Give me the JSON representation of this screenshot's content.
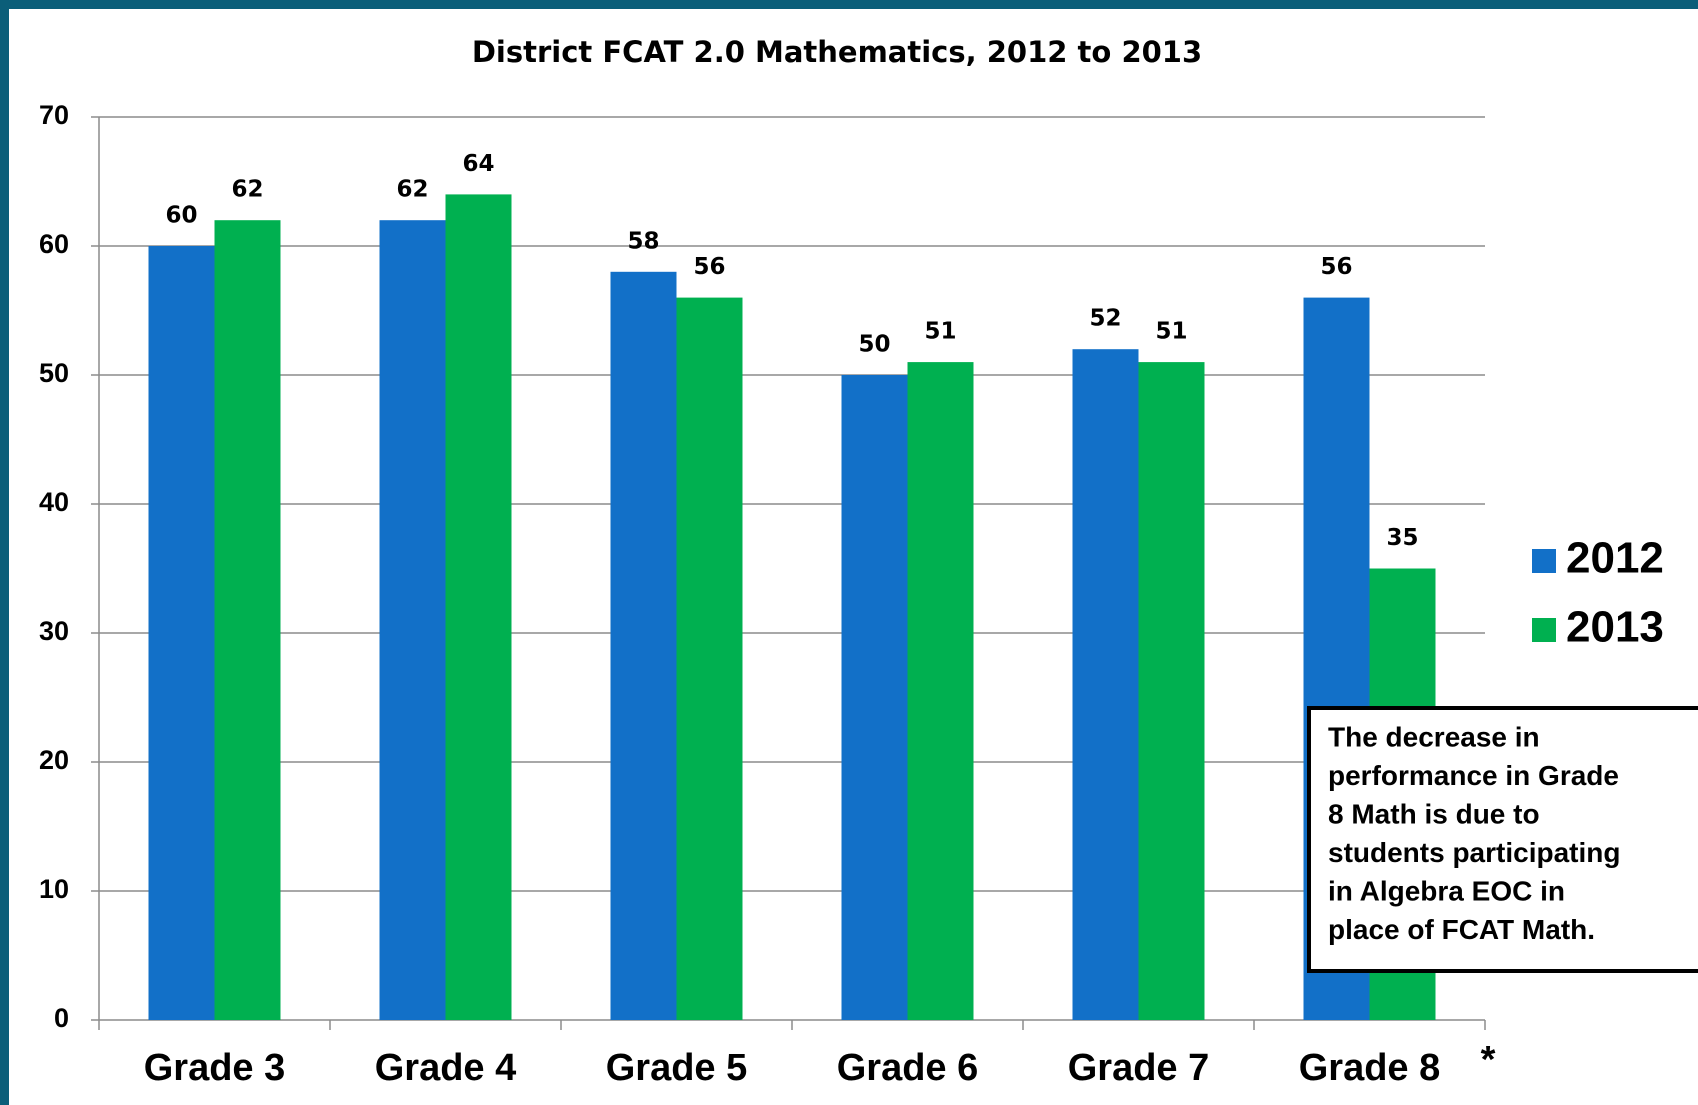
{
  "chart_data": {
    "type": "bar",
    "title": "District FCAT 2.0 Mathematics, 2012 to 2013",
    "categories": [
      "Grade 3",
      "Grade 4",
      "Grade 5",
      "Grade 6",
      "Grade 7",
      "Grade 8"
    ],
    "series": [
      {
        "name": "2012",
        "color": "#1270c8",
        "values": [
          60,
          62,
          58,
          50,
          52,
          56
        ]
      },
      {
        "name": "2013",
        "color": "#00b050",
        "values": [
          62,
          64,
          56,
          51,
          51,
          35
        ]
      }
    ],
    "ylim": [
      0,
      70
    ],
    "yticks": [
      0,
      10,
      20,
      30,
      40,
      50,
      60,
      70
    ],
    "grid": true,
    "legend": "right",
    "category_note": "*",
    "annotation": [
      "The decrease in",
      "performance in Grade",
      "8 Math is due to",
      "students participating",
      "in Algebra EOC in",
      "place of FCAT Math."
    ]
  }
}
